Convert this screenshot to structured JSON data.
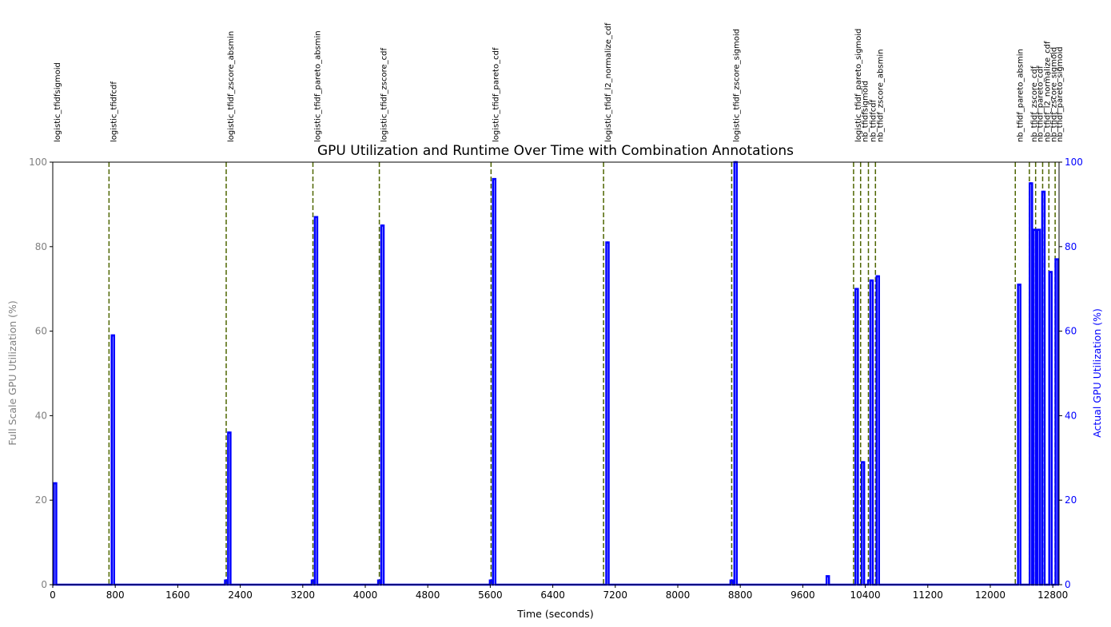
{
  "chart_data": {
    "type": "line",
    "title": "GPU Utilization and Runtime Over Time with Combination Annotations",
    "xlabel": "Time (seconds)",
    "ylabel_left": "Full Scale GPU Utilization (%)",
    "ylabel_right": "Actual GPU Utilization (%)",
    "xlim": [
      0,
      12880
    ],
    "ylim_left": [
      0,
      100
    ],
    "ylim_right": [
      0,
      100
    ],
    "x_ticks": [
      0,
      800,
      1600,
      2400,
      3200,
      4000,
      4800,
      5600,
      6400,
      7200,
      8000,
      8800,
      9600,
      10400,
      11200,
      12000,
      12800
    ],
    "y_ticks": [
      0,
      20,
      40,
      60,
      80,
      100
    ],
    "grid": false,
    "colors": {
      "gpu_line": "#0000ff",
      "annotation_line": "#4f6600",
      "left_axis": "#808080",
      "right_axis": "#0000ff"
    },
    "annotations": [
      {
        "x": 0,
        "label": "logistic_tfidfsigmoid"
      },
      {
        "x": 720,
        "label": "logistic_tfidfcdf"
      },
      {
        "x": 2220,
        "label": "logistic_tfidf_zscore_absmin"
      },
      {
        "x": 3330,
        "label": "logistic_tfidf_pareto_absmin"
      },
      {
        "x": 4180,
        "label": "logistic_tfidf_zscore_cdf"
      },
      {
        "x": 5610,
        "label": "logistic_tfidf_pareto_cdf"
      },
      {
        "x": 7050,
        "label": "logistic_tfidf_l2_normalize_cdf"
      },
      {
        "x": 8690,
        "label": "logistic_tfidf_zscore_sigmoid"
      },
      {
        "x": 10250,
        "label": "logistic_tfidf_pareto_sigmoid"
      },
      {
        "x": 10340,
        "label": "nb_tfidfsigmoid"
      },
      {
        "x": 10440,
        "label": "nb_tfidfcdf"
      },
      {
        "x": 10530,
        "label": "nb_tfidf_zscore_absmin"
      },
      {
        "x": 12320,
        "label": "nb_tfidf_pareto_absmin"
      },
      {
        "x": 12500,
        "label": "nb_tfidf_zscore_cdf"
      },
      {
        "x": 12580,
        "label": "nb_tfidf_pareto_cdf"
      },
      {
        "x": 12670,
        "label": "nb_tfidf_l2_normalize_cdf"
      },
      {
        "x": 12750,
        "label": "nb_tfidf_zscore_sigmoid"
      },
      {
        "x": 12830,
        "label": "nb_tfidf_pareto_sigmoid"
      }
    ],
    "series": [
      {
        "values": [
          {
            "x": 30,
            "y": 24
          },
          {
            "x": 770,
            "y": 59
          },
          {
            "x": 2220,
            "y": 1
          },
          {
            "x": 2260,
            "y": 36
          },
          {
            "x": 3330,
            "y": 1
          },
          {
            "x": 3370,
            "y": 87
          },
          {
            "x": 4180,
            "y": 1
          },
          {
            "x": 4220,
            "y": 85
          },
          {
            "x": 5610,
            "y": 1
          },
          {
            "x": 5650,
            "y": 96
          },
          {
            "x": 7100,
            "y": 81
          },
          {
            "x": 8690,
            "y": 1
          },
          {
            "x": 8740,
            "y": 100
          },
          {
            "x": 9920,
            "y": 2
          },
          {
            "x": 10290,
            "y": 70
          },
          {
            "x": 10370,
            "y": 29
          },
          {
            "x": 10450,
            "y": 1
          },
          {
            "x": 10480,
            "y": 72
          },
          {
            "x": 10560,
            "y": 73
          },
          {
            "x": 12370,
            "y": 71
          },
          {
            "x": 12520,
            "y": 95
          },
          {
            "x": 12570,
            "y": 84
          },
          {
            "x": 12620,
            "y": 84
          },
          {
            "x": 12680,
            "y": 93
          },
          {
            "x": 12770,
            "y": 74
          },
          {
            "x": 12850,
            "y": 77
          }
        ]
      }
    ]
  }
}
